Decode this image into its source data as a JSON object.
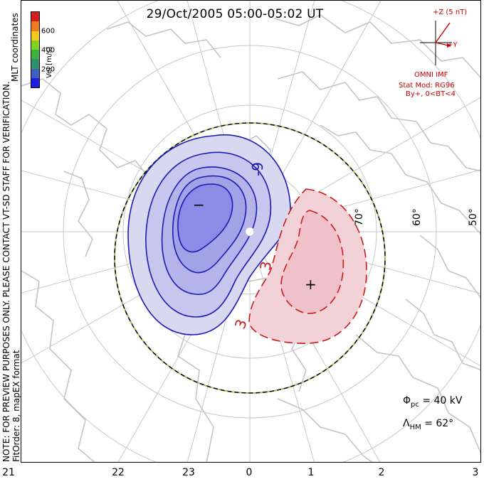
{
  "title": "29/Oct/2005 05:00-05:02 UT",
  "notes": {
    "preview": "NOTE: FOR PREVIEW PURPOSES ONLY. PLEASE CONTACT VT-SD STAFF FOR VERIFICATION.",
    "fit": "FitOrder: 8, mapEX format",
    "coords": "MLT coordinates"
  },
  "colorbar": {
    "units": "Vel [m/s]",
    "labels": [
      "600",
      "400",
      "200"
    ],
    "colors": [
      "#d41e1e",
      "#f07a1e",
      "#f0c81e",
      "#7fd21e",
      "#3cb43c",
      "#2f8f6f",
      "#3f5fbf",
      "#1e1ee0"
    ]
  },
  "imf": {
    "z_label": "+Z (5 nT)",
    "y_label": "+Y",
    "source": "OMNI IMF",
    "model": "Stat Mod: RG96",
    "condition": "By+, 0<BT<4"
  },
  "x_axis": {
    "ticks": [
      "21",
      "22",
      "23",
      "0",
      "1",
      "2",
      "3"
    ]
  },
  "latitude_labels": [
    "70°",
    "60°",
    "50°"
  ],
  "contour_labels": {
    "neg": "-9",
    "pos1": "3",
    "pos2": "3"
  },
  "cell_markers": {
    "minus": "−",
    "plus": "+"
  },
  "stats": {
    "phi_symbol": "Φ",
    "phi_sub": "pc",
    "phi_value": "= 40 kV",
    "lambda_symbol": "Λ",
    "lambda_sub": "HM",
    "lambda_value": "= 62°"
  },
  "colors": {
    "negative_line": "#1a1ab4",
    "negative_fill": "#8c8ce6",
    "positive_line": "#cc1a1a",
    "positive_fill": "#f2d2d6",
    "grid": "#c8c8c8",
    "coast": "#c8c8c8",
    "boundary_dash": "#9fd24a"
  }
}
